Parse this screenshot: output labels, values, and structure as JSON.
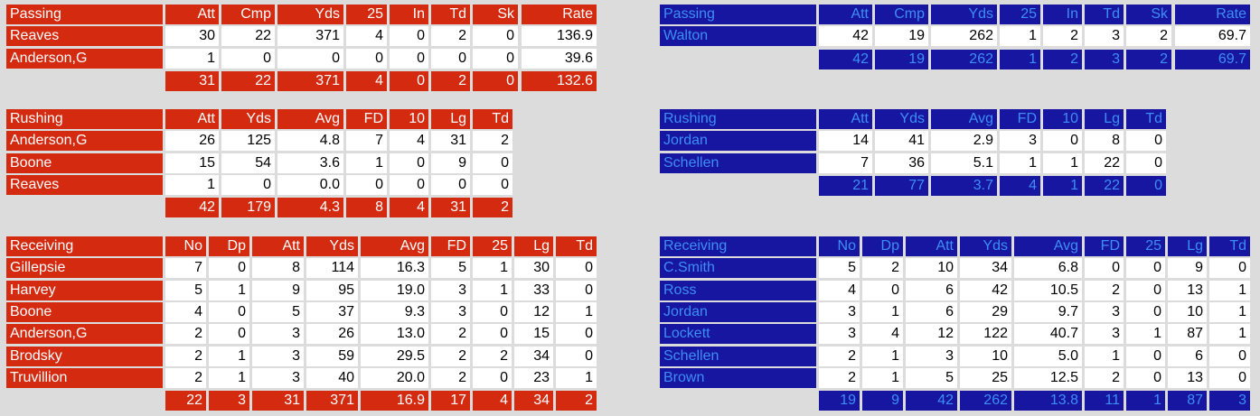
{
  "teams": [
    {
      "sections": [
        {
          "title": "Passing",
          "columns": [
            "Att",
            "Cmp",
            "Yds",
            "25",
            "In",
            "Td",
            "Sk",
            "Rate"
          ],
          "rows": [
            {
              "name": "Reaves",
              "cells": [
                "30",
                "22",
                "371",
                "4",
                "0",
                "2",
                "0",
                "136.9"
              ]
            },
            {
              "name": "Anderson,G",
              "cells": [
                "1",
                "0",
                "0",
                "0",
                "0",
                "0",
                "0",
                "39.6"
              ]
            }
          ],
          "totals": [
            "31",
            "22",
            "371",
            "4",
            "0",
            "2",
            "0",
            "132.6"
          ]
        },
        {
          "title": "Rushing",
          "columns": [
            "Att",
            "Yds",
            "Avg",
            "FD",
            "10",
            "Lg",
            "Td"
          ],
          "rows": [
            {
              "name": "Anderson,G",
              "cells": [
                "26",
                "125",
                "4.8",
                "7",
                "4",
                "31",
                "2"
              ]
            },
            {
              "name": "Boone",
              "cells": [
                "15",
                "54",
                "3.6",
                "1",
                "0",
                "9",
                "0"
              ]
            },
            {
              "name": "Reaves",
              "cells": [
                "1",
                "0",
                "0.0",
                "0",
                "0",
                "0",
                "0"
              ]
            }
          ],
          "totals": [
            "42",
            "179",
            "4.3",
            "8",
            "4",
            "31",
            "2"
          ]
        },
        {
          "title": "Receiving",
          "columns": [
            "No",
            "Dp",
            "Att",
            "Yds",
            "Avg",
            "FD",
            "25",
            "Lg",
            "Td"
          ],
          "rows": [
            {
              "name": "Gillepsie",
              "cells": [
                "7",
                "0",
                "8",
                "114",
                "16.3",
                "5",
                "1",
                "30",
                "0"
              ]
            },
            {
              "name": "Harvey",
              "cells": [
                "5",
                "1",
                "9",
                "95",
                "19.0",
                "3",
                "1",
                "33",
                "0"
              ]
            },
            {
              "name": "Boone",
              "cells": [
                "4",
                "0",
                "5",
                "37",
                "9.3",
                "3",
                "0",
                "12",
                "1"
              ]
            },
            {
              "name": "Anderson,G",
              "cells": [
                "2",
                "0",
                "3",
                "26",
                "13.0",
                "2",
                "0",
                "15",
                "0"
              ]
            },
            {
              "name": "Brodsky",
              "cells": [
                "2",
                "1",
                "3",
                "59",
                "29.5",
                "2",
                "2",
                "34",
                "0"
              ]
            },
            {
              "name": "Truvillion",
              "cells": [
                "2",
                "1",
                "3",
                "40",
                "20.0",
                "2",
                "0",
                "23",
                "1"
              ]
            }
          ],
          "totals": [
            "22",
            "3",
            "31",
            "371",
            "16.9",
            "17",
            "4",
            "34",
            "2"
          ]
        }
      ]
    },
    {
      "sections": [
        {
          "title": "Passing",
          "columns": [
            "Att",
            "Cmp",
            "Yds",
            "25",
            "In",
            "Td",
            "Sk",
            "Rate"
          ],
          "rows": [
            {
              "name": "Walton",
              "cells": [
                "42",
                "19",
                "262",
                "1",
                "2",
                "3",
                "2",
                "69.7"
              ]
            }
          ],
          "totals": [
            "42",
            "19",
            "262",
            "1",
            "2",
            "3",
            "2",
            "69.7"
          ]
        },
        {
          "title": "Rushing",
          "columns": [
            "Att",
            "Yds",
            "Avg",
            "FD",
            "10",
            "Lg",
            "Td"
          ],
          "rows": [
            {
              "name": "Jordan",
              "cells": [
                "14",
                "41",
                "2.9",
                "3",
                "0",
                "8",
                "0"
              ]
            },
            {
              "name": "Schellen",
              "cells": [
                "7",
                "36",
                "5.1",
                "1",
                "1",
                "22",
                "0"
              ]
            }
          ],
          "totals": [
            "21",
            "77",
            "3.7",
            "4",
            "1",
            "22",
            "0"
          ]
        },
        {
          "title": "Receiving",
          "columns": [
            "No",
            "Dp",
            "Att",
            "Yds",
            "Avg",
            "FD",
            "25",
            "Lg",
            "Td"
          ],
          "rows": [
            {
              "name": "C.Smith",
              "cells": [
                "5",
                "2",
                "10",
                "34",
                "6.8",
                "0",
                "0",
                "9",
                "0"
              ]
            },
            {
              "name": "Ross",
              "cells": [
                "4",
                "0",
                "6",
                "42",
                "10.5",
                "2",
                "0",
                "13",
                "1"
              ]
            },
            {
              "name": "Jordan",
              "cells": [
                "3",
                "1",
                "6",
                "29",
                "9.7",
                "3",
                "0",
                "10",
                "1"
              ]
            },
            {
              "name": "Lockett",
              "cells": [
                "3",
                "4",
                "12",
                "122",
                "40.7",
                "3",
                "1",
                "87",
                "1"
              ]
            },
            {
              "name": "Schellen",
              "cells": [
                "2",
                "1",
                "3",
                "10",
                "5.0",
                "1",
                "0",
                "6",
                "0"
              ]
            },
            {
              "name": "Brown",
              "cells": [
                "2",
                "1",
                "5",
                "25",
                "12.5",
                "2",
                "0",
                "13",
                "0"
              ]
            }
          ],
          "totals": [
            "19",
            "9",
            "42",
            "262",
            "13.8",
            "11",
            "1",
            "87",
            "3"
          ]
        }
      ]
    }
  ]
}
